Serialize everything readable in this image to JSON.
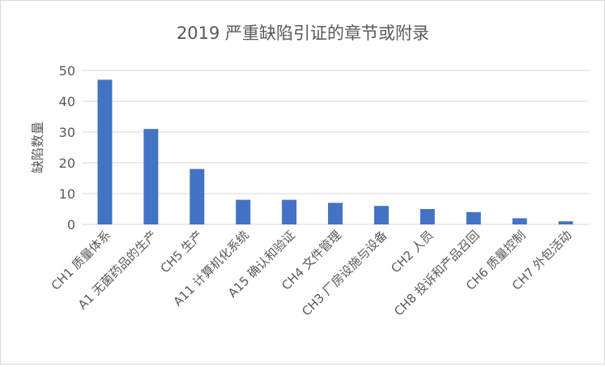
{
  "chart_data": {
    "type": "bar",
    "title": "2019 严重缺陷引证的章节或附录",
    "xlabel": "",
    "ylabel": "缺陷数量",
    "ylim": [
      0,
      50
    ],
    "yticks": [
      0,
      10,
      20,
      30,
      40,
      50
    ],
    "grid": true,
    "legend": "none",
    "colors": {
      "bar": "#4472c4",
      "grid": "#d9d9d9",
      "text": "#595959"
    },
    "categories": [
      "CH1 质量体系",
      "A1 无菌药品的生产",
      "CH5 生产",
      "A11 计算机化系统",
      "A15 确认和验证",
      "CH4 文件管理",
      "CH3 厂房设施与设备",
      "CH2 人员",
      "CH8 投诉和产品召回",
      "CH6 质量控制",
      "CH7 外包活动"
    ],
    "values": [
      47,
      31,
      18,
      8,
      8,
      7,
      6,
      5,
      4,
      2,
      1
    ]
  }
}
